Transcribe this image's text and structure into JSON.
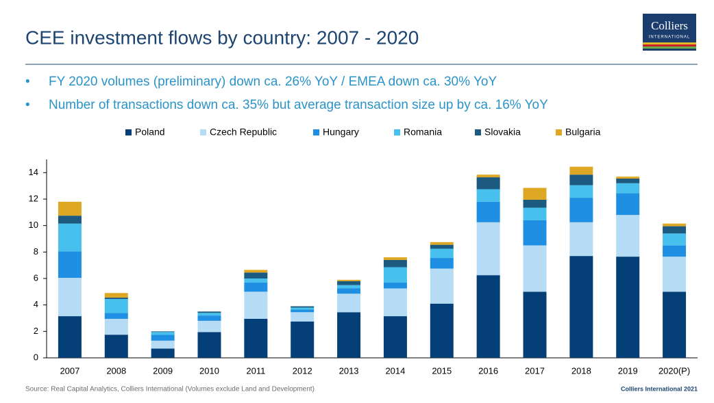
{
  "header": {
    "title": "CEE investment flows by country: 2007 - 2020",
    "logo": "Colliers",
    "logo_sub": "INTERNATIONAL"
  },
  "bullets": [
    "FY 2020 volumes (preliminary) down ca. 26% YoY  /  EMEA down ca. 30% YoY",
    "Number of transactions down ca. 35% but average transaction size up by ca. 16% YoY"
  ],
  "chart_data": {
    "type": "stacked_bar",
    "categories": [
      "2007",
      "2008",
      "2009",
      "2010",
      "2011",
      "2012",
      "2013",
      "2014",
      "2015",
      "2016",
      "2017",
      "2018",
      "2019",
      "2020(P)"
    ],
    "series": [
      {
        "name": "Poland",
        "color": "#053f78",
        "values": [
          3.15,
          1.75,
          0.7,
          1.95,
          2.95,
          2.75,
          3.45,
          3.15,
          4.1,
          6.25,
          5.0,
          7.7,
          7.65,
          5.0
        ]
      },
      {
        "name": "Czech Republic",
        "color": "#b5dcf4",
        "values": [
          2.9,
          1.2,
          0.6,
          0.85,
          2.05,
          0.7,
          1.4,
          2.1,
          2.65,
          4.0,
          3.5,
          2.55,
          3.15,
          2.65
        ]
      },
      {
        "name": "Hungary",
        "color": "#1f8fe4",
        "values": [
          2.0,
          0.45,
          0.45,
          0.4,
          0.7,
          0.2,
          0.4,
          0.45,
          0.8,
          1.55,
          1.9,
          1.85,
          1.65,
          0.85
        ]
      },
      {
        "name": "Romania",
        "color": "#48c0ee",
        "values": [
          2.1,
          1.05,
          0.2,
          0.2,
          0.3,
          0.15,
          0.25,
          1.15,
          0.7,
          0.95,
          0.95,
          0.95,
          0.75,
          0.9
        ]
      },
      {
        "name": "Slovakia",
        "color": "#1d5a7f",
        "values": [
          0.6,
          0.1,
          0.05,
          0.1,
          0.45,
          0.1,
          0.3,
          0.55,
          0.3,
          0.9,
          0.6,
          0.8,
          0.35,
          0.55
        ]
      },
      {
        "name": "Bulgaria",
        "color": "#dfa824",
        "values": [
          1.05,
          0.35,
          0.0,
          0.0,
          0.2,
          0.0,
          0.1,
          0.2,
          0.2,
          0.2,
          0.9,
          0.6,
          0.15,
          0.2
        ]
      }
    ],
    "ylim": [
      0,
      15
    ],
    "yticks": [
      0,
      2,
      4,
      6,
      8,
      10,
      12,
      14
    ],
    "grid": false,
    "legend": "top"
  },
  "footer": {
    "source": "Source: Real Capital Analytics, Colliers International (Volumes exclude Land and Development)",
    "copyright": "Colliers International 2021"
  }
}
